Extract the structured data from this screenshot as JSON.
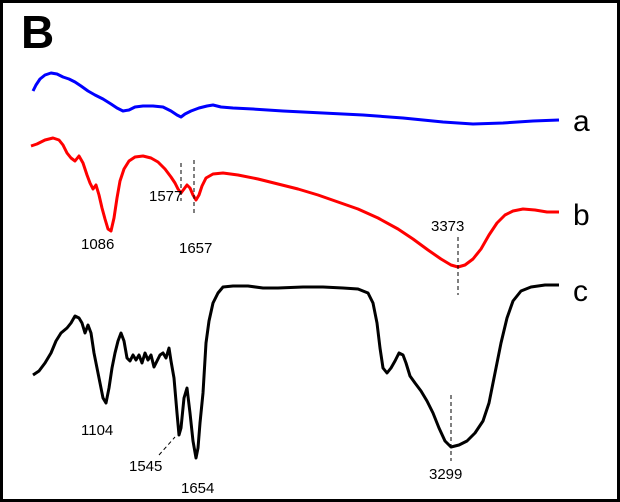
{
  "chart_data": {
    "type": "line",
    "panel_label": "B",
    "grid": false,
    "axes_shown": false,
    "series": [
      {
        "name": "a",
        "color": "#0000ff"
      },
      {
        "name": "b",
        "color": "#ff0000"
      },
      {
        "name": "c",
        "color": "#000000"
      }
    ],
    "peak_annotations": [
      {
        "series": "b",
        "label": "1086"
      },
      {
        "series": "b",
        "label": "1577"
      },
      {
        "series": "b",
        "label": "1657"
      },
      {
        "series": "b",
        "label": "3373"
      },
      {
        "series": "c",
        "label": "1104"
      },
      {
        "series": "c",
        "label": "1545"
      },
      {
        "series": "c",
        "label": "1654"
      },
      {
        "series": "c",
        "label": "3299"
      }
    ]
  }
}
